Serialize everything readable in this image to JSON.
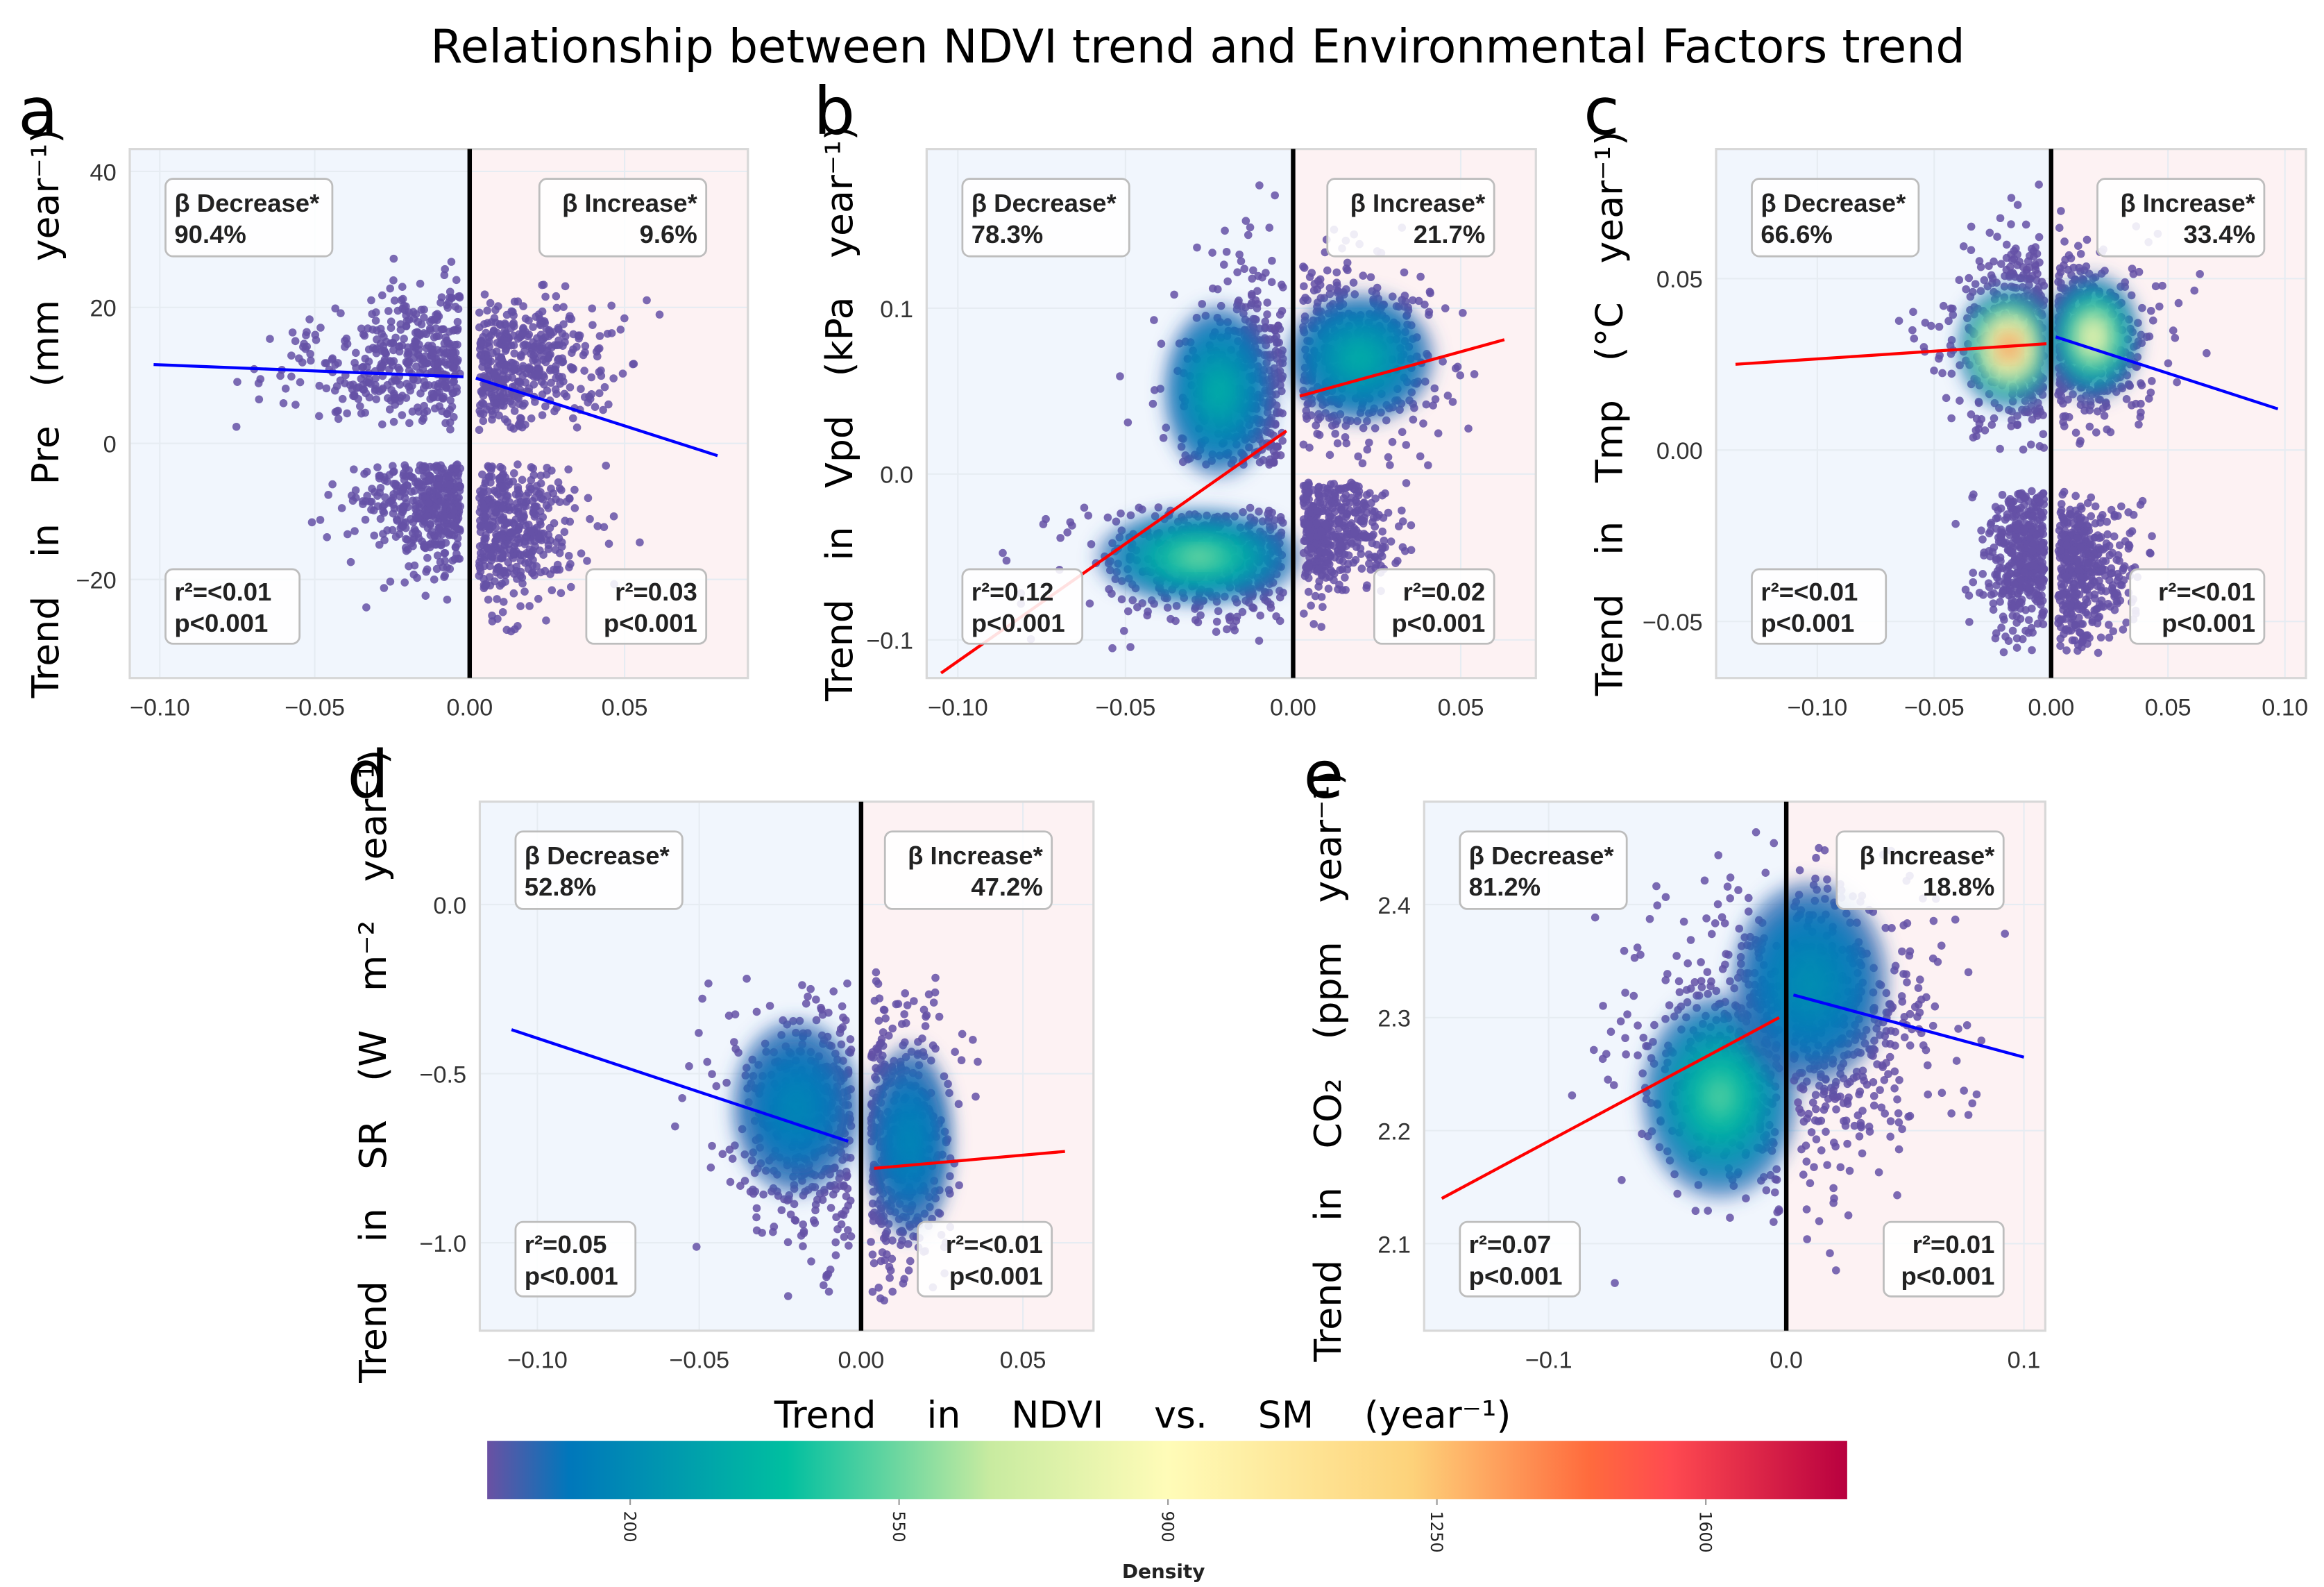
{
  "title": "Relationship between NDVI trend and Environmental Factors trend",
  "xlabel": "Trend in NDVI vs. SM (year⁻¹)",
  "colorbar": {
    "title": "Density",
    "colormap": "Spectral_r",
    "range": [
      14,
      1784
    ],
    "ticks": [
      200,
      550,
      900,
      1250,
      1600
    ],
    "tick_labels": [
      "200",
      "550",
      "900",
      "1250",
      "1600"
    ],
    "colors": [
      "#5e4fa2",
      "#0077bb",
      "#00bfa0",
      "#c8eba0",
      "#fffcb8",
      "#fdd27a",
      "#ff6b3d",
      "#ff4a50",
      "#b8003f"
    ]
  },
  "chart_data": [
    {
      "panel": "a",
      "type": "scatter",
      "ylabel": "Trend in Pre (mm year⁻¹)",
      "xlim": [
        -0.1097,
        0.0898
      ],
      "ylim": [
        -34.5,
        43.3
      ],
      "grid": true,
      "xticks": [
        -0.1,
        -0.05,
        0.0,
        0.05
      ],
      "xtick_labels": [
        "−0.10",
        "−0.05",
        "0.00",
        "0.05"
      ],
      "yticks": [
        40,
        20,
        0,
        -20
      ],
      "ytick_labels": [
        "40",
        "20",
        "0",
        "−20"
      ],
      "decrease": {
        "label": "β Decrease*",
        "pct": "90.4%",
        "r2": "r²=<0.01",
        "p": "p<0.001",
        "fit": [
          [
            -0.102,
            11.6
          ],
          [
            -0.002,
            9.8
          ]
        ],
        "fit_color": "#0000ff"
      },
      "increase": {
        "label": "β Increase*",
        "pct": "9.6%",
        "r2": "r²=0.03",
        "p": "p<0.001",
        "fit": [
          [
            0.002,
            9.6
          ],
          [
            0.08,
            -1.8
          ]
        ],
        "fit_color": "#0000ff"
      },
      "clouds": [
        {
          "side": "L",
          "x": [
            -0.102,
            -0.003
          ],
          "y": [
            2,
            28
          ],
          "cy": 12,
          "sx": 0.025,
          "sy": 5
        },
        {
          "side": "L",
          "x": [
            -0.075,
            -0.003
          ],
          "y": [
            -28,
            -3
          ],
          "cy": -9,
          "sx": 0.015,
          "sy": 5
        },
        {
          "side": "R",
          "x": [
            0.003,
            0.08
          ],
          "y": [
            0,
            25
          ],
          "cy": 12,
          "sx": 0.02,
          "sy": 5
        },
        {
          "side": "R",
          "x": [
            0.003,
            0.06
          ],
          "y": [
            -31,
            -3
          ],
          "cy": -12,
          "sx": 0.015,
          "sy": 6
        }
      ]
    },
    {
      "panel": "b",
      "type": "scatter",
      "ylabel": "Trend in Vpd (kPa year⁻¹)",
      "xlim": [
        -0.1093,
        0.0724
      ],
      "ylim": [
        -0.123,
        0.196
      ],
      "grid": true,
      "xticks": [
        -0.1,
        -0.05,
        0.0,
        0.05
      ],
      "xtick_labels": [
        "−0.10",
        "−0.05",
        "0.00",
        "0.05"
      ],
      "yticks": [
        0.1,
        0.0,
        -0.1
      ],
      "ytick_labels": [
        "0.1",
        "0.0",
        "−0.1"
      ],
      "decrease": {
        "label": "β Decrease*",
        "pct": "78.3%",
        "r2": "r²=0.12",
        "p": "p<0.001",
        "fit": [
          [
            -0.105,
            -0.12
          ],
          [
            -0.002,
            0.026
          ]
        ],
        "fit_color": "#ff0000"
      },
      "increase": {
        "label": "β Increase*",
        "pct": "21.7%",
        "r2": "r²=0.02",
        "p": "p<0.001",
        "fit": [
          [
            0.002,
            0.047
          ],
          [
            0.063,
            0.081
          ]
        ],
        "fit_color": "#ff0000"
      },
      "clouds": [
        {
          "side": "L",
          "x": [
            -0.06,
            -0.003
          ],
          "y": [
            0.005,
            0.18
          ],
          "cy": 0.05,
          "sx": 0.015,
          "sy": 0.04,
          "peak": [
            -0.022,
            0.05,
            0.2
          ]
        },
        {
          "side": "L",
          "x": [
            -0.108,
            -0.003
          ],
          "y": [
            -0.11,
            -0.02
          ],
          "cy": -0.05,
          "sx": 0.028,
          "sy": 0.022,
          "peak": [
            -0.028,
            -0.05,
            0.33
          ]
        },
        {
          "side": "R",
          "x": [
            0.003,
            0.065
          ],
          "y": [
            0.005,
            0.15
          ],
          "cy": 0.07,
          "sx": 0.02,
          "sy": 0.03,
          "peak": [
            0.02,
            0.07,
            0.2
          ]
        },
        {
          "side": "R",
          "x": [
            0.003,
            0.04
          ],
          "y": [
            -0.11,
            -0.005
          ],
          "cy": -0.03,
          "sx": 0.012,
          "sy": 0.02
        }
      ]
    },
    {
      "panel": "c",
      "type": "scatter",
      "ylabel": "Trend in Tmp (°C year⁻¹)",
      "xlim": [
        -0.1433,
        0.109
      ],
      "ylim": [
        -0.0665,
        0.0878
      ],
      "grid": true,
      "xticks": [
        -0.1,
        -0.05,
        0.0,
        0.05,
        0.1
      ],
      "xtick_labels": [
        "−0.10",
        "−0.05",
        "0.00",
        "0.05",
        "0.10"
      ],
      "yticks": [
        0.05,
        0.0,
        -0.05
      ],
      "ytick_labels": [
        "0.05",
        "0.00",
        "−0.05"
      ],
      "decrease": {
        "label": "β Decrease*",
        "pct": "66.6%",
        "r2": "r²=<0.01",
        "p": "p<0.001",
        "fit": [
          [
            -0.135,
            0.025
          ],
          [
            -0.002,
            0.031
          ]
        ],
        "fit_color": "#ff0000"
      },
      "increase": {
        "label": "β Increase*",
        "pct": "33.4%",
        "r2": "r²=<0.01",
        "p": "p<0.001",
        "fit": [
          [
            0.002,
            0.033
          ],
          [
            0.097,
            0.012
          ]
        ],
        "fit_color": "#0000ff"
      },
      "clouds": [
        {
          "side": "L",
          "x": [
            -0.13,
            -0.003
          ],
          "y": [
            0.0,
            0.08
          ],
          "cy": 0.032,
          "sx": 0.02,
          "sy": 0.014,
          "peak": [
            -0.018,
            0.03,
            0.82
          ]
        },
        {
          "side": "L",
          "x": [
            -0.05,
            -0.003
          ],
          "y": [
            -0.06,
            -0.012
          ],
          "cy": -0.03,
          "sx": 0.012,
          "sy": 0.012
        },
        {
          "side": "R",
          "x": [
            0.003,
            0.097
          ],
          "y": [
            0.0,
            0.08
          ],
          "cy": 0.032,
          "sx": 0.018,
          "sy": 0.014,
          "peak": [
            0.018,
            0.033,
            0.55
          ]
        },
        {
          "side": "R",
          "x": [
            0.003,
            0.06
          ],
          "y": [
            -0.06,
            -0.012
          ],
          "cy": -0.035,
          "sx": 0.015,
          "sy": 0.012
        }
      ]
    },
    {
      "panel": "d",
      "type": "scatter",
      "ylabel": "Trend in SR (W m⁻² year⁻¹)",
      "xlim": [
        -0.1178,
        0.0718
      ],
      "ylim": [
        -1.26,
        0.304
      ],
      "grid": true,
      "xticks": [
        -0.1,
        -0.05,
        0.0,
        0.05
      ],
      "xtick_labels": [
        "−0.10",
        "−0.05",
        "0.00",
        "0.05"
      ],
      "yticks": [
        0.0,
        -0.5,
        -1.0
      ],
      "ytick_labels": [
        "0.0",
        "−0.5",
        "−1.0"
      ],
      "decrease": {
        "label": "β Decrease*",
        "pct": "52.8%",
        "r2": "r²=0.05",
        "p": "p<0.001",
        "fit": [
          [
            -0.108,
            -0.37
          ],
          [
            -0.004,
            -0.7
          ]
        ],
        "fit_color": "#0000ff"
      },
      "increase": {
        "label": "β Increase*",
        "pct": "47.2%",
        "r2": "r²=<0.01",
        "p": "p<0.001",
        "fit": [
          [
            0.004,
            -0.78
          ],
          [
            0.063,
            -0.73
          ]
        ],
        "fit_color": "#ff0000"
      },
      "clouds": [
        {
          "side": "L",
          "x": [
            -0.11,
            -0.003
          ],
          "y": [
            -1.17,
            -0.2
          ],
          "cy": -0.65,
          "sx": 0.018,
          "sy": 0.2,
          "peak": [
            -0.02,
            -0.6,
            0.1
          ]
        },
        {
          "side": "R",
          "x": [
            0.003,
            0.063
          ],
          "y": [
            -1.18,
            -0.2
          ],
          "cy": -0.7,
          "sx": 0.012,
          "sy": 0.22,
          "peak": [
            0.015,
            -0.7,
            0.1
          ]
        }
      ]
    },
    {
      "panel": "e",
      "type": "scatter",
      "ylabel": "Trend in CO₂ (ppm year⁻¹)",
      "xlim": [
        -0.1524,
        0.109
      ],
      "ylim": [
        2.023,
        2.491
      ],
      "grid": true,
      "xticks": [
        -0.1,
        0.0,
        0.1
      ],
      "xtick_labels": [
        "−0.1",
        "0.0",
        "0.1"
      ],
      "yticks": [
        2.4,
        2.3,
        2.2,
        2.1
      ],
      "ytick_labels": [
        "2.4",
        "2.3",
        "2.2",
        "2.1"
      ],
      "decrease": {
        "label": "β Decrease*",
        "pct": "81.2%",
        "r2": "r²=0.07",
        "p": "p<0.001",
        "fit": [
          [
            -0.145,
            2.14
          ],
          [
            -0.003,
            2.3
          ]
        ],
        "fit_color": "#ff0000"
      },
      "increase": {
        "label": "β Increase*",
        "pct": "18.8%",
        "r2": "r²=0.01",
        "p": "p<0.001",
        "fit": [
          [
            0.003,
            2.32
          ],
          [
            0.1,
            2.265
          ]
        ],
        "fit_color": "#0000ff"
      },
      "clouds": [
        {
          "side": "L",
          "x": [
            -0.145,
            -0.003
          ],
          "y": [
            2.04,
            2.47
          ],
          "cy": 2.27,
          "sx": 0.03,
          "sy": 0.07,
          "peak": [
            -0.028,
            2.23,
            0.3
          ]
        },
        {
          "side": "R",
          "x": [
            0.003,
            0.1
          ],
          "y": [
            2.04,
            2.45
          ],
          "cy": 2.3,
          "sx": 0.03,
          "sy": 0.07,
          "peak": [
            0.01,
            2.33,
            0.12
          ]
        }
      ]
    }
  ]
}
